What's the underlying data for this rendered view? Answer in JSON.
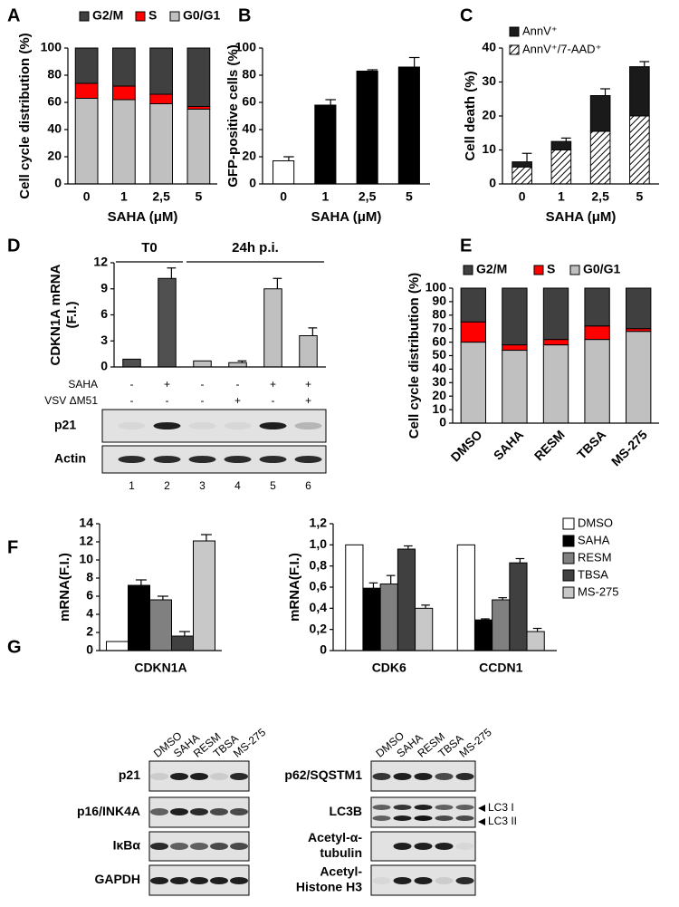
{
  "panels": [
    "A",
    "B",
    "C",
    "D",
    "E",
    "F",
    "G"
  ],
  "chart_data": [
    {
      "type": "stacked_bar",
      "ylabel": "Cell cycle distribution (%)",
      "xlabel": "SAHA (μM)",
      "categories": [
        "0",
        "1",
        "2,5",
        "5"
      ],
      "series": [
        {
          "name": "G0/G1",
          "color": "#c0c0c0",
          "values": [
            63,
            62,
            59,
            55
          ]
        },
        {
          "name": "S",
          "color": "#ff0000",
          "values": [
            11,
            10,
            7,
            2
          ]
        },
        {
          "name": "G2/M",
          "color": "#404040",
          "values": [
            26,
            28,
            34,
            43
          ]
        }
      ],
      "ylim": [
        0,
        100
      ],
      "yticks": [
        0,
        20,
        40,
        60,
        80,
        100
      ]
    },
    {
      "type": "bar",
      "ylabel": "GFP-positive cells (%)",
      "xlabel": "SAHA (μM)",
      "categories": [
        "0",
        "1",
        "2,5",
        "5"
      ],
      "values": [
        17,
        58,
        83,
        86
      ],
      "errors": [
        3,
        4,
        1,
        7
      ],
      "colors": [
        "#ffffff",
        "#000000",
        "#000000",
        "#000000"
      ],
      "ylim": [
        0,
        100
      ],
      "yticks": [
        0,
        20,
        40,
        60,
        80,
        100
      ]
    },
    {
      "type": "stacked_bar",
      "ylabel": "Cell death (%)",
      "xlabel": "SAHA (μM)",
      "categories": [
        "0",
        "1",
        "2,5",
        "5"
      ],
      "series": [
        {
          "name": "AnnV⁺/7-AAD⁺",
          "color": "#000000",
          "hatch": true,
          "values": [
            5,
            10,
            15.5,
            20
          ]
        },
        {
          "name": "AnnV⁺",
          "color": "#1a1a1a",
          "values": [
            1.5,
            2.5,
            10.5,
            14.5
          ],
          "errors": [
            2.5,
            1,
            2,
            1.5
          ]
        }
      ],
      "ylim": [
        0,
        40
      ],
      "yticks": [
        0,
        10,
        20,
        30,
        40
      ]
    },
    {
      "type": "bar",
      "ylabel": [
        "CDKN1A mRNA",
        "(F.I.)"
      ],
      "categories": [
        "1",
        "2",
        "3",
        "4",
        "5",
        "6"
      ],
      "values": [
        0.9,
        10.2,
        0.7,
        0.5,
        9,
        3.6
      ],
      "errors": [
        null,
        1.2,
        null,
        0.2,
        1.2,
        0.9
      ],
      "colors": [
        "#505050",
        "#505050",
        "#c0c0c0",
        "#c0c0c0",
        "#c0c0c0",
        "#c0c0c0"
      ],
      "groups": [
        "T0",
        "24h p.i."
      ],
      "conditions": [
        {
          "name": "SAHA",
          "values": [
            "-",
            "+",
            "-",
            "-",
            "+",
            "+"
          ]
        },
        {
          "name": "VSV ΔM51",
          "values": [
            "-",
            "-",
            "-",
            "+",
            "-",
            "+"
          ]
        }
      ],
      "ylim": [
        0,
        12
      ],
      "yticks": [
        0,
        3,
        6,
        9,
        12
      ]
    },
    {
      "type": "stacked_bar",
      "ylabel": "Cell cycle distribution (%)",
      "categories": [
        "DMSO",
        "SAHA",
        "RESM",
        "TBSA",
        "MS-275"
      ],
      "series": [
        {
          "name": "G0/G1",
          "color": "#c0c0c0",
          "values": [
            60,
            54,
            58,
            62,
            68
          ]
        },
        {
          "name": "S",
          "color": "#ff0000",
          "values": [
            15,
            4,
            4,
            10,
            2
          ]
        },
        {
          "name": "G2/M",
          "color": "#404040",
          "values": [
            25,
            42,
            38,
            28,
            30
          ]
        }
      ],
      "ylim": [
        0,
        100
      ],
      "yticks": [
        0,
        10,
        20,
        30,
        40,
        50,
        60,
        70,
        80,
        90,
        100
      ]
    },
    {
      "type": "grouped_bar",
      "ylabel": "mRNA(F.I.)",
      "categories": [
        "CDKN1A"
      ],
      "series": [
        {
          "color": "#ffffff",
          "values": [
            1
          ],
          "errors": [
            null
          ]
        },
        {
          "color": "#000000",
          "values": [
            7.2
          ],
          "errors": [
            0.6
          ]
        },
        {
          "color": "#808080",
          "values": [
            5.6
          ],
          "errors": [
            0.4
          ]
        },
        {
          "color": "#404040",
          "values": [
            1.6
          ],
          "errors": [
            0.5
          ]
        },
        {
          "color": "#c8c8c8",
          "values": [
            12.1
          ],
          "errors": [
            0.7
          ]
        }
      ],
      "ylim": [
        0,
        14
      ],
      "yticks": [
        0,
        2,
        4,
        6,
        8,
        10,
        12,
        14
      ]
    },
    {
      "type": "grouped_bar",
      "ylabel": "mRNA(F.I.)",
      "categories": [
        "CDK6",
        "CCDN1"
      ],
      "series": [
        {
          "name": "DMSO",
          "color": "#ffffff",
          "values": [
            1.0,
            1.0
          ],
          "errors": [
            null,
            null
          ]
        },
        {
          "name": "SAHA",
          "color": "#000000",
          "values": [
            0.59,
            0.29
          ],
          "errors": [
            0.05,
            0.01
          ]
        },
        {
          "name": "RESM",
          "color": "#808080",
          "values": [
            0.63,
            0.48
          ],
          "errors": [
            0.08,
            0.02
          ]
        },
        {
          "name": "TBSA",
          "color": "#404040",
          "values": [
            0.96,
            0.83
          ],
          "errors": [
            0.03,
            0.04
          ]
        },
        {
          "name": "MS-275",
          "color": "#c8c8c8",
          "values": [
            0.4,
            0.18
          ],
          "errors": [
            0.03,
            0.03
          ]
        }
      ],
      "ylim": [
        0,
        1.2
      ],
      "yticks": [
        0,
        {
          "value": 0.2,
          "label": "0,2"
        },
        {
          "value": 0.4,
          "label": "0,4"
        },
        {
          "value": 0.6,
          "label": "0,6"
        },
        {
          "value": 0.8,
          "label": "0,8"
        },
        {
          "value": 1.0,
          "label": "1,0"
        },
        {
          "value": 1.2,
          "label": "1,2"
        }
      ]
    }
  ],
  "blots": {
    "D": {
      "rows": [
        "p21",
        "Actin"
      ]
    },
    "G": {
      "lanes": [
        "DMSO",
        "SAHA",
        "RESM",
        "TBSA",
        "MS-275"
      ],
      "left_rows": [
        "p21",
        "p16/INK4A",
        "IκBα",
        "GAPDH"
      ],
      "right_rows": [
        [
          "p62/SQSTM1"
        ],
        [
          "LC3B"
        ],
        [
          "Acetyl-α-",
          "tubulin"
        ],
        [
          "Acetyl-",
          "Histone H3"
        ]
      ],
      "markers": [
        "LC3 I",
        "LC3 II"
      ]
    }
  }
}
